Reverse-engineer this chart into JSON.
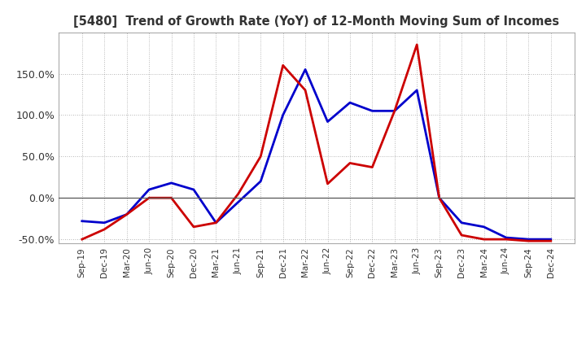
{
  "title": "[5480]  Trend of Growth Rate (YoY) of 12-Month Moving Sum of Incomes",
  "x_labels": [
    "Sep-19",
    "Dec-19",
    "Mar-20",
    "Jun-20",
    "Sep-20",
    "Dec-20",
    "Mar-21",
    "Jun-21",
    "Sep-21",
    "Dec-21",
    "Mar-22",
    "Jun-22",
    "Sep-22",
    "Dec-22",
    "Mar-23",
    "Jun-23",
    "Sep-23",
    "Dec-23",
    "Mar-24",
    "Jun-24",
    "Sep-24",
    "Dec-24"
  ],
  "ordinary_income": [
    -28,
    -30,
    -20,
    10,
    18,
    10,
    -30,
    -5,
    20,
    100,
    155,
    92,
    115,
    105,
    105,
    130,
    0,
    -30,
    -35,
    -48,
    -50,
    -50
  ],
  "net_income": [
    -50,
    -38,
    -20,
    0,
    0,
    -35,
    -30,
    5,
    50,
    160,
    130,
    17,
    42,
    37,
    105,
    185,
    0,
    -45,
    -50,
    -50,
    -52,
    -52
  ],
  "ordinary_color": "#0000cc",
  "net_color": "#cc0000",
  "ylim_min": -55,
  "ylim_max": 200,
  "yticks": [
    -50,
    0,
    50,
    100,
    150
  ],
  "ytick_labels": [
    "-50.0%",
    "0.0%",
    "50.0%",
    "100.0%",
    "150.0%"
  ],
  "background_color": "#ffffff",
  "grid_color": "#888888",
  "title_color": "#333333"
}
